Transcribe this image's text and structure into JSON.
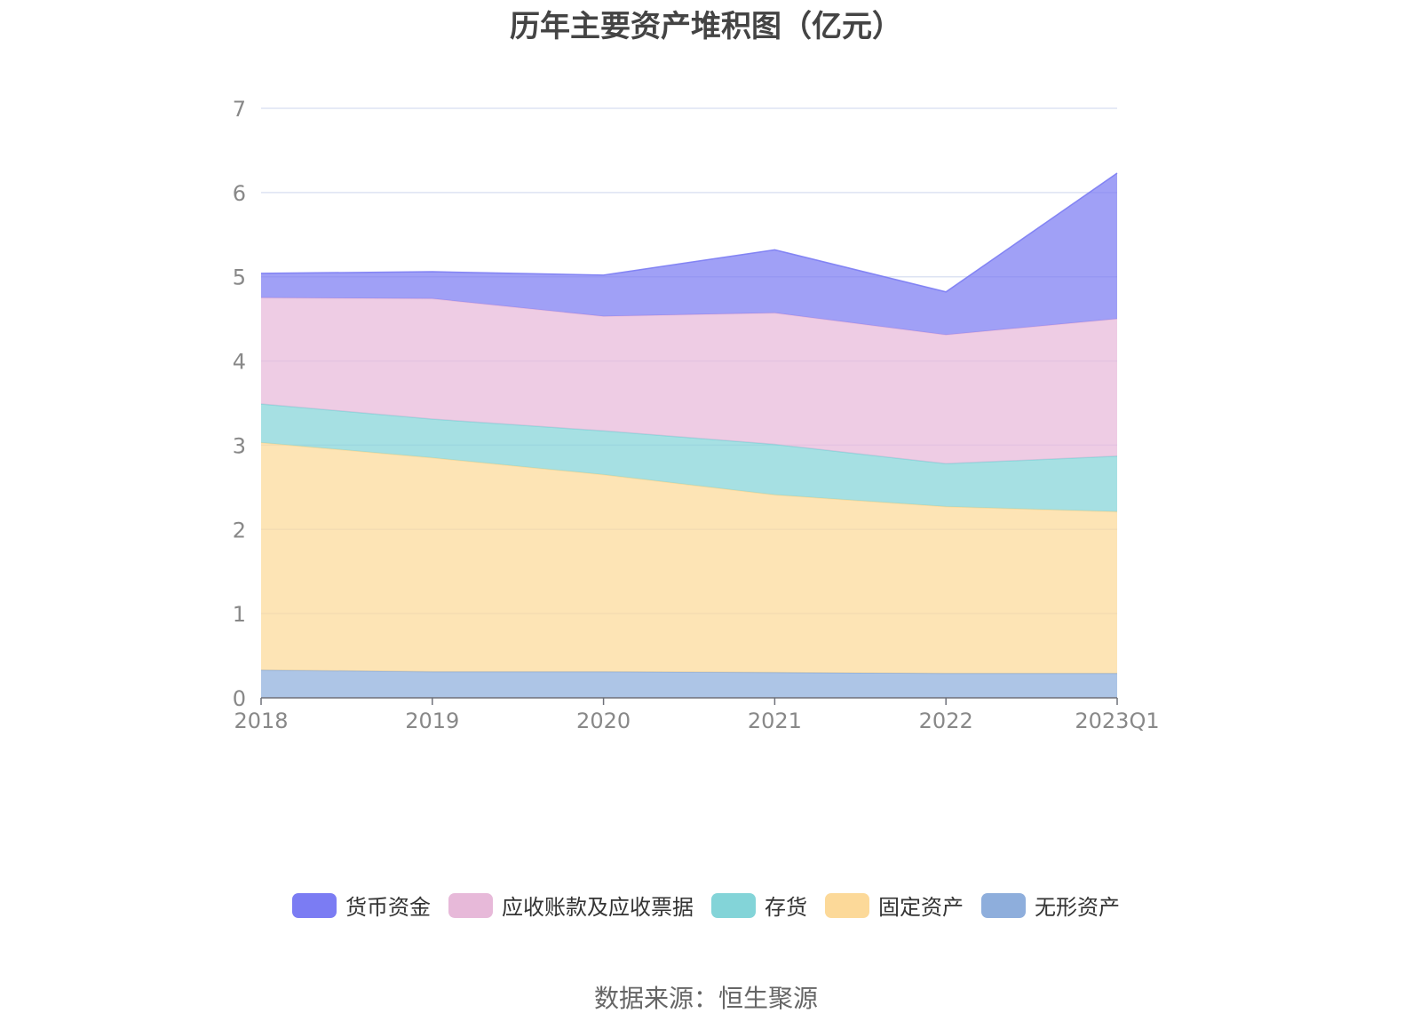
{
  "title": "历年主要资产堆积图（亿元）",
  "source": "数据来源：恒生聚源",
  "chart_data": {
    "type": "area",
    "stacked": true,
    "title": "历年主要资产堆积图（亿元）",
    "categories": [
      "2018",
      "2019",
      "2020",
      "2021",
      "2022",
      "2023Q1"
    ],
    "ylim": [
      0,
      7
    ],
    "yticks": [
      0,
      1,
      2,
      3,
      4,
      5,
      6,
      7
    ],
    "grid": true,
    "legend_position": "bottom",
    "series": [
      {
        "name": "无形资产",
        "color": "#8eaedc",
        "values": [
          0.33,
          0.31,
          0.31,
          0.3,
          0.29,
          0.29
        ]
      },
      {
        "name": "固定资产",
        "color": "#fcd999",
        "values": [
          2.7,
          2.54,
          2.34,
          2.11,
          1.98,
          1.92
        ]
      },
      {
        "name": "存货",
        "color": "#83d4d8",
        "values": [
          0.46,
          0.46,
          0.52,
          0.6,
          0.51,
          0.66
        ]
      },
      {
        "name": "应收账款及应收票据",
        "color": "#e7b9d9",
        "values": [
          1.26,
          1.43,
          1.36,
          1.56,
          1.53,
          1.63
        ]
      },
      {
        "name": "货币资金",
        "color": "#7b7cf3",
        "values": [
          0.29,
          0.32,
          0.49,
          0.75,
          0.51,
          1.73
        ]
      }
    ]
  },
  "legend": [
    {
      "label": "货币资金",
      "color": "#7b7cf3"
    },
    {
      "label": "应收账款及应收票据",
      "color": "#e7b9d9"
    },
    {
      "label": "存货",
      "color": "#83d4d8"
    },
    {
      "label": "固定资产",
      "color": "#fcd999"
    },
    {
      "label": "无形资产",
      "color": "#8eaedc"
    }
  ]
}
